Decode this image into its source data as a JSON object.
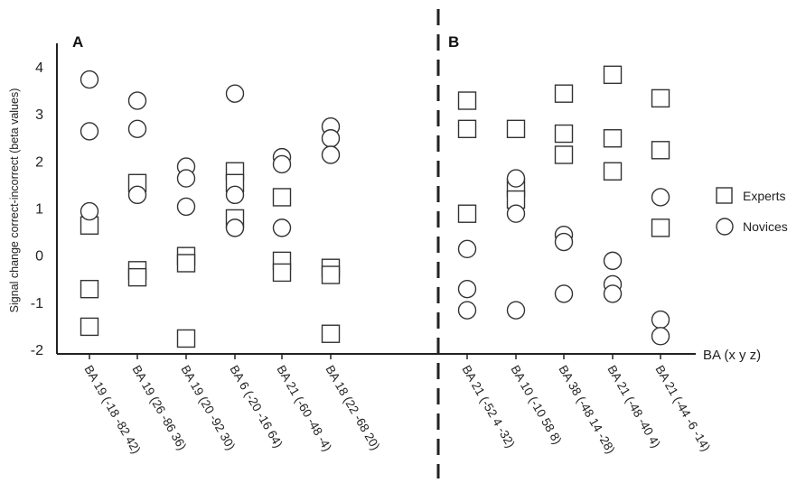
{
  "chart_data": {
    "type": "scatter",
    "ylabel": "Signal change correct-incorrect (beta values)",
    "xlabel": "BA (x y z)",
    "ylim": [
      -2,
      4
    ],
    "yticks": [
      4,
      3,
      2,
      1,
      0,
      -1,
      -2
    ],
    "legend": {
      "position": "right",
      "entries": [
        {
          "name": "Experts",
          "marker": "square"
        },
        {
          "name": "Novices",
          "marker": "circle"
        }
      ]
    },
    "panels": [
      {
        "label": "A",
        "categories": [
          "BA 19 (-18 -82 42)",
          "BA 19 (26 -86 36)",
          "BA 19 (20 -92 30)",
          "BA 6 (-20 -16 64)",
          "BA 21 (-60 -48 -4)",
          "BA 18 (22 -68 20)"
        ],
        "series": [
          {
            "name": "Experts",
            "marker": "square",
            "values": [
              [
                0.65,
                -0.7,
                -1.5
              ],
              [
                1.55,
                -0.3,
                -0.45
              ],
              [
                0.0,
                -0.15,
                -1.75
              ],
              [
                1.8,
                1.55,
                0.8
              ],
              [
                1.25,
                -0.1,
                -0.35
              ],
              [
                -0.25,
                -0.4,
                -1.65
              ]
            ]
          },
          {
            "name": "Novices",
            "marker": "circle",
            "values": [
              [
                3.75,
                2.65,
                0.95
              ],
              [
                3.3,
                2.7,
                1.3
              ],
              [
                1.9,
                1.65,
                1.05
              ],
              [
                3.45,
                1.3,
                0.6
              ],
              [
                2.1,
                1.95,
                0.6
              ],
              [
                2.75,
                2.5,
                2.15
              ]
            ]
          }
        ]
      },
      {
        "label": "B",
        "categories": [
          "BA 21 (-52 4 -32)",
          "BA 10 (-10 58 8)",
          "BA 38 (-48 14 -28)",
          "BA 21 (-48 -40 4)",
          "BA 21 (-44 -6 -14)"
        ],
        "series": [
          {
            "name": "Experts",
            "marker": "square",
            "values": [
              [
                3.3,
                2.7,
                0.9
              ],
              [
                2.7,
                1.45,
                1.2
              ],
              [
                3.45,
                2.6,
                2.15
              ],
              [
                3.85,
                2.5,
                1.8
              ],
              [
                3.35,
                2.25,
                0.6
              ]
            ]
          },
          {
            "name": "Novices",
            "marker": "circle",
            "values": [
              [
                0.15,
                -0.7,
                -1.15
              ],
              [
                1.65,
                0.9,
                -1.15
              ],
              [
                0.45,
                0.3,
                -0.8
              ],
              [
                -0.1,
                -0.6,
                -0.8
              ],
              [
                1.25,
                -1.35,
                -1.7
              ]
            ]
          }
        ]
      }
    ]
  }
}
